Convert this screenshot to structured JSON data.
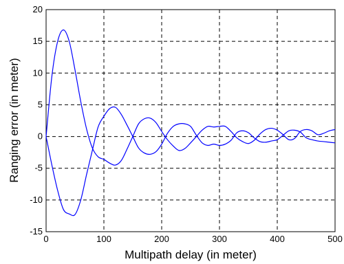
{
  "chart_data": {
    "type": "line",
    "title": "",
    "xlabel": "Multipath delay (in meter)",
    "ylabel": "Ranging error (in meter)",
    "xlim": [
      0,
      500
    ],
    "ylim": [
      -15,
      20
    ],
    "xticks": [
      0,
      100,
      200,
      300,
      400,
      500
    ],
    "yticks": [
      -15,
      -10,
      -5,
      0,
      5,
      10,
      15,
      20
    ],
    "xtick_labels": [
      "0",
      "100",
      "200",
      "300",
      "400",
      "500"
    ],
    "ytick_labels": [
      "-15",
      "-10",
      "-5",
      "0",
      "5",
      "10",
      "15",
      "20"
    ],
    "grid": true,
    "grid_style": "dashed",
    "line_color": "#0000ff",
    "series": [
      {
        "x": [
          0,
          10,
          20,
          30,
          40,
          50,
          60,
          70,
          80,
          90,
          100,
          110,
          120,
          130,
          140,
          150,
          160,
          170,
          180,
          190,
          200,
          210,
          220,
          230,
          240,
          250,
          260,
          270,
          280,
          290,
          300,
          310,
          320,
          330,
          340,
          350,
          360,
          370,
          380,
          390,
          400,
          410,
          420,
          430,
          440,
          450,
          460,
          470,
          480,
          490,
          500
        ],
        "values": [
          0,
          9.5,
          15,
          16.8,
          15,
          10.5,
          5.5,
          1.2,
          -1.8,
          -3.2,
          -3.6,
          -4.2,
          -4.5,
          -3.8,
          -2.0,
          0,
          2.0,
          2.8,
          2.9,
          2.2,
          0.8,
          -0.5,
          -1.5,
          -2.2,
          -1.9,
          -1.0,
          0,
          1.0,
          1.6,
          1.5,
          1.6,
          1.6,
          0.8,
          -0.2,
          -0.8,
          -1.1,
          -0.6,
          0.4,
          1.1,
          1.3,
          1.0,
          0.3,
          -0.5,
          -0.3,
          0.8,
          1.1,
          0.9,
          0.3,
          0.5,
          0.9,
          1.1
        ]
      },
      {
        "x": [
          0,
          10,
          20,
          30,
          40,
          50,
          60,
          70,
          80,
          90,
          100,
          110,
          120,
          130,
          140,
          150,
          160,
          170,
          180,
          190,
          200,
          210,
          220,
          230,
          240,
          250,
          260,
          270,
          280,
          290,
          300,
          310,
          320,
          330,
          340,
          350,
          360,
          370,
          380,
          390,
          400,
          410,
          420,
          430,
          440,
          450,
          460,
          470,
          480,
          490,
          500
        ],
        "values": [
          0,
          -4.5,
          -8.5,
          -11.5,
          -12.2,
          -12.3,
          -10.0,
          -6.0,
          -2.2,
          1.5,
          3.2,
          4.4,
          4.6,
          3.5,
          1.8,
          0,
          -1.8,
          -2.6,
          -2.8,
          -2.4,
          -1.2,
          0.5,
          1.6,
          2.0,
          2.0,
          1.6,
          0.2,
          -1.0,
          -1.4,
          -1.2,
          -1.4,
          -1.2,
          -0.6,
          0.6,
          0.9,
          0.6,
          -0.2,
          -0.8,
          -0.9,
          -0.7,
          -0.5,
          0.2,
          0.9,
          1.0,
          0.7,
          -0.2,
          -0.5,
          -0.7,
          -0.8,
          -0.9,
          -1.0
        ]
      }
    ]
  }
}
